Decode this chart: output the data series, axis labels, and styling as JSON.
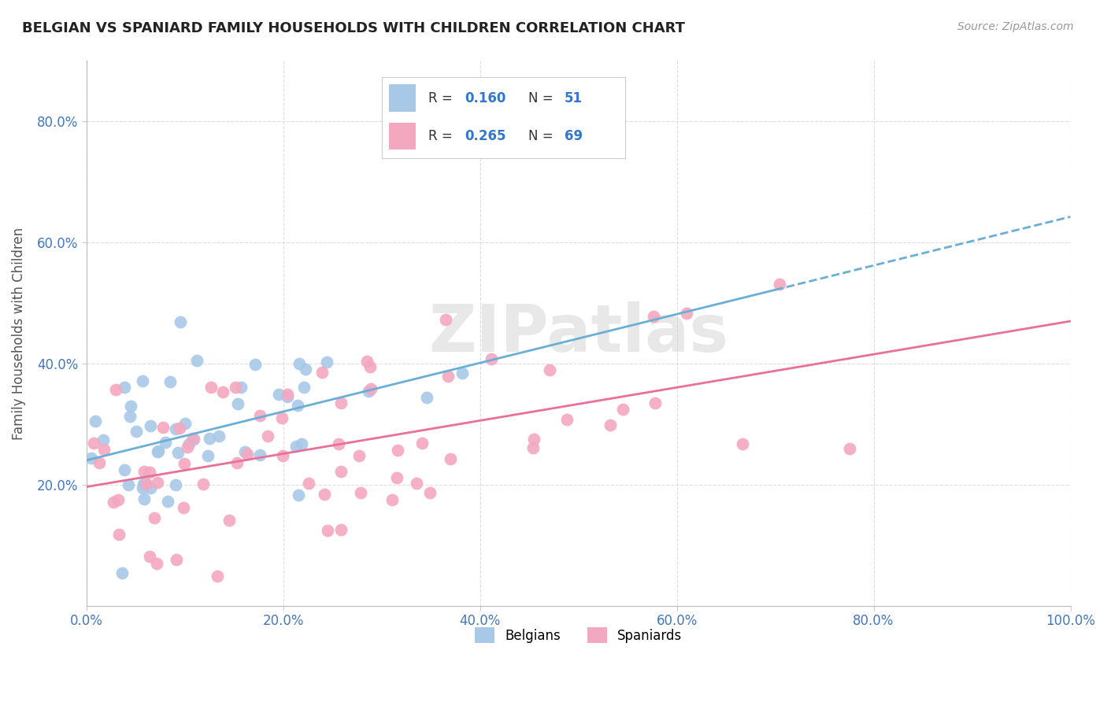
{
  "title": "BELGIAN VS SPANIARD FAMILY HOUSEHOLDS WITH CHILDREN CORRELATION CHART",
  "source": "Source: ZipAtlas.com",
  "ylabel": "Family Households with Children",
  "belgian_R": 0.16,
  "belgian_N": 51,
  "spaniard_R": 0.265,
  "spaniard_N": 69,
  "belgian_color": "#a8c8e8",
  "spaniard_color": "#f4a8c0",
  "belgian_line_color": "#6aafd6",
  "spaniard_line_color": "#e8709a",
  "xlim": [
    0,
    1
  ],
  "ylim": [
    0.0,
    0.9
  ],
  "xticks": [
    0.0,
    0.2,
    0.4,
    0.6,
    0.8,
    1.0
  ],
  "yticks": [
    0.2,
    0.4,
    0.6,
    0.8
  ],
  "xticklabels": [
    "0.0%",
    "20.0%",
    "40.0%",
    "60.0%",
    "80.0%",
    "100.0%"
  ],
  "yticklabels": [
    "20.0%",
    "40.0%",
    "60.0%",
    "80.0%"
  ],
  "legend_labels": [
    "Belgians",
    "Spaniards"
  ],
  "watermark_text": "ZIPatlas"
}
